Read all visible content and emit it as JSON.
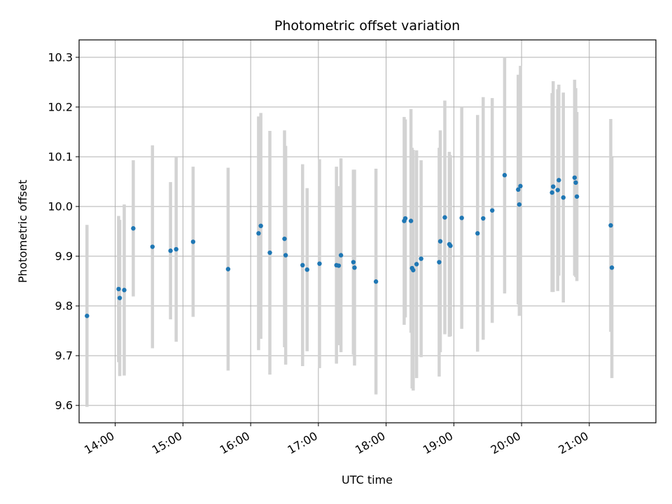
{
  "chart_data": {
    "type": "scatter",
    "title": "Photometric offset variation",
    "xlabel": "UTC time",
    "ylabel": "Photometric offset",
    "x_ticks": [
      "14:00",
      "15:00",
      "16:00",
      "17:00",
      "18:00",
      "19:00",
      "20:00",
      "21:00"
    ],
    "y_ticks": [
      "9.6",
      "9.7",
      "9.8",
      "9.9",
      "10.0",
      "10.1",
      "10.2",
      "10.3"
    ],
    "xlim": [
      "13:28",
      "21:59"
    ],
    "ylim": [
      9.565,
      10.335
    ],
    "grid": true,
    "colors": {
      "point": "#1f77b4",
      "errorbar": "#d3d3d3",
      "grid": "#b0b0b0"
    },
    "points": [
      {
        "x": "13:35",
        "y": 9.78,
        "err": 0.183
      },
      {
        "x": "14:03",
        "y": 9.834,
        "err": 0.147
      },
      {
        "x": "14:04",
        "y": 9.816,
        "err": 0.157
      },
      {
        "x": "14:08",
        "y": 9.832,
        "err": 0.172
      },
      {
        "x": "14:16",
        "y": 9.956,
        "err": 0.137
      },
      {
        "x": "14:33",
        "y": 9.919,
        "err": 0.204
      },
      {
        "x": "14:49",
        "y": 9.911,
        "err": 0.138
      },
      {
        "x": "14:54",
        "y": 9.914,
        "err": 0.186
      },
      {
        "x": "15:09",
        "y": 9.929,
        "err": 0.151
      },
      {
        "x": "15:40",
        "y": 9.874,
        "err": 0.204
      },
      {
        "x": "16:07",
        "y": 9.946,
        "err": 0.235
      },
      {
        "x": "16:09",
        "y": 9.961,
        "err": 0.227
      },
      {
        "x": "16:17",
        "y": 9.907,
        "err": 0.245
      },
      {
        "x": "16:30",
        "y": 9.935,
        "err": 0.218
      },
      {
        "x": "16:31",
        "y": 9.902,
        "err": 0.22
      },
      {
        "x": "16:46",
        "y": 9.882,
        "err": 0.203
      },
      {
        "x": "16:50",
        "y": 9.873,
        "err": 0.164
      },
      {
        "x": "17:01",
        "y": 9.885,
        "err": 0.21
      },
      {
        "x": "17:16",
        "y": 9.882,
        "err": 0.198
      },
      {
        "x": "17:18",
        "y": 9.881,
        "err": 0.16
      },
      {
        "x": "17:20",
        "y": 9.902,
        "err": 0.195
      },
      {
        "x": "17:31",
        "y": 9.888,
        "err": 0.186
      },
      {
        "x": "17:32",
        "y": 9.877,
        "err": 0.197
      },
      {
        "x": "17:51",
        "y": 9.849,
        "err": 0.227
      },
      {
        "x": "18:16",
        "y": 9.971,
        "err": 0.209
      },
      {
        "x": "18:17",
        "y": 9.976,
        "err": 0.199
      },
      {
        "x": "18:22",
        "y": 9.971,
        "err": 0.225
      },
      {
        "x": "18:23",
        "y": 9.876,
        "err": 0.242
      },
      {
        "x": "18:24",
        "y": 9.872,
        "err": 0.242
      },
      {
        "x": "18:27",
        "y": 9.884,
        "err": 0.229
      },
      {
        "x": "18:31",
        "y": 9.895,
        "err": 0.198
      },
      {
        "x": "18:47",
        "y": 9.888,
        "err": 0.23
      },
      {
        "x": "18:48",
        "y": 9.93,
        "err": 0.223
      },
      {
        "x": "18:52",
        "y": 9.978,
        "err": 0.235
      },
      {
        "x": "18:56",
        "y": 9.924,
        "err": 0.186
      },
      {
        "x": "18:57",
        "y": 9.921,
        "err": 0.182
      },
      {
        "x": "19:07",
        "y": 9.977,
        "err": 0.223
      },
      {
        "x": "19:21",
        "y": 9.946,
        "err": 0.238
      },
      {
        "x": "19:26",
        "y": 9.976,
        "err": 0.244
      },
      {
        "x": "19:34",
        "y": 9.992,
        "err": 0.226
      },
      {
        "x": "19:45",
        "y": 10.063,
        "err": 0.238
      },
      {
        "x": "19:57",
        "y": 10.034,
        "err": 0.231
      },
      {
        "x": "19:58",
        "y": 10.004,
        "err": 0.224
      },
      {
        "x": "19:59",
        "y": 10.041,
        "err": 0.242
      },
      {
        "x": "20:27",
        "y": 10.028,
        "err": 0.2
      },
      {
        "x": "20:28",
        "y": 10.04,
        "err": 0.212
      },
      {
        "x": "20:32",
        "y": 10.033,
        "err": 0.203
      },
      {
        "x": "20:33",
        "y": 10.053,
        "err": 0.192
      },
      {
        "x": "20:37",
        "y": 10.018,
        "err": 0.211
      },
      {
        "x": "20:47",
        "y": 10.058,
        "err": 0.197
      },
      {
        "x": "20:48",
        "y": 10.048,
        "err": 0.19
      },
      {
        "x": "20:49",
        "y": 10.02,
        "err": 0.17
      },
      {
        "x": "21:19",
        "y": 9.962,
        "err": 0.214
      },
      {
        "x": "21:20",
        "y": 9.877,
        "err": 0.222
      }
    ]
  }
}
